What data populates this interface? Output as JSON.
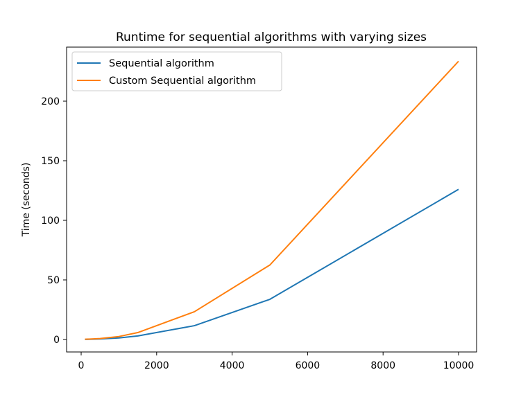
{
  "chart_data": {
    "type": "line",
    "title": "Runtime for sequential algorithms with varying sizes",
    "xlabel": "",
    "ylabel": "Time (seconds)",
    "x": [
      100,
      500,
      1000,
      1500,
      3000,
      5000,
      10000
    ],
    "series": [
      {
        "name": "Sequential algorithm",
        "color": "#1f77b4",
        "values": [
          0.1,
          0.4,
          1.3,
          3.0,
          11.6,
          33.7,
          126.0
        ]
      },
      {
        "name": "Custom Sequential algorithm",
        "color": "#ff7f0e",
        "values": [
          0.2,
          0.8,
          2.5,
          5.8,
          23.3,
          62.5,
          233.5
        ]
      }
    ],
    "xticks": [
      0,
      2000,
      4000,
      6000,
      8000,
      10000
    ],
    "yticks": [
      0,
      50,
      100,
      150,
      200
    ],
    "xlim": [
      -400,
      10500
    ],
    "ylim": [
      -11,
      245
    ],
    "grid": false,
    "legend_position": "upper left"
  }
}
